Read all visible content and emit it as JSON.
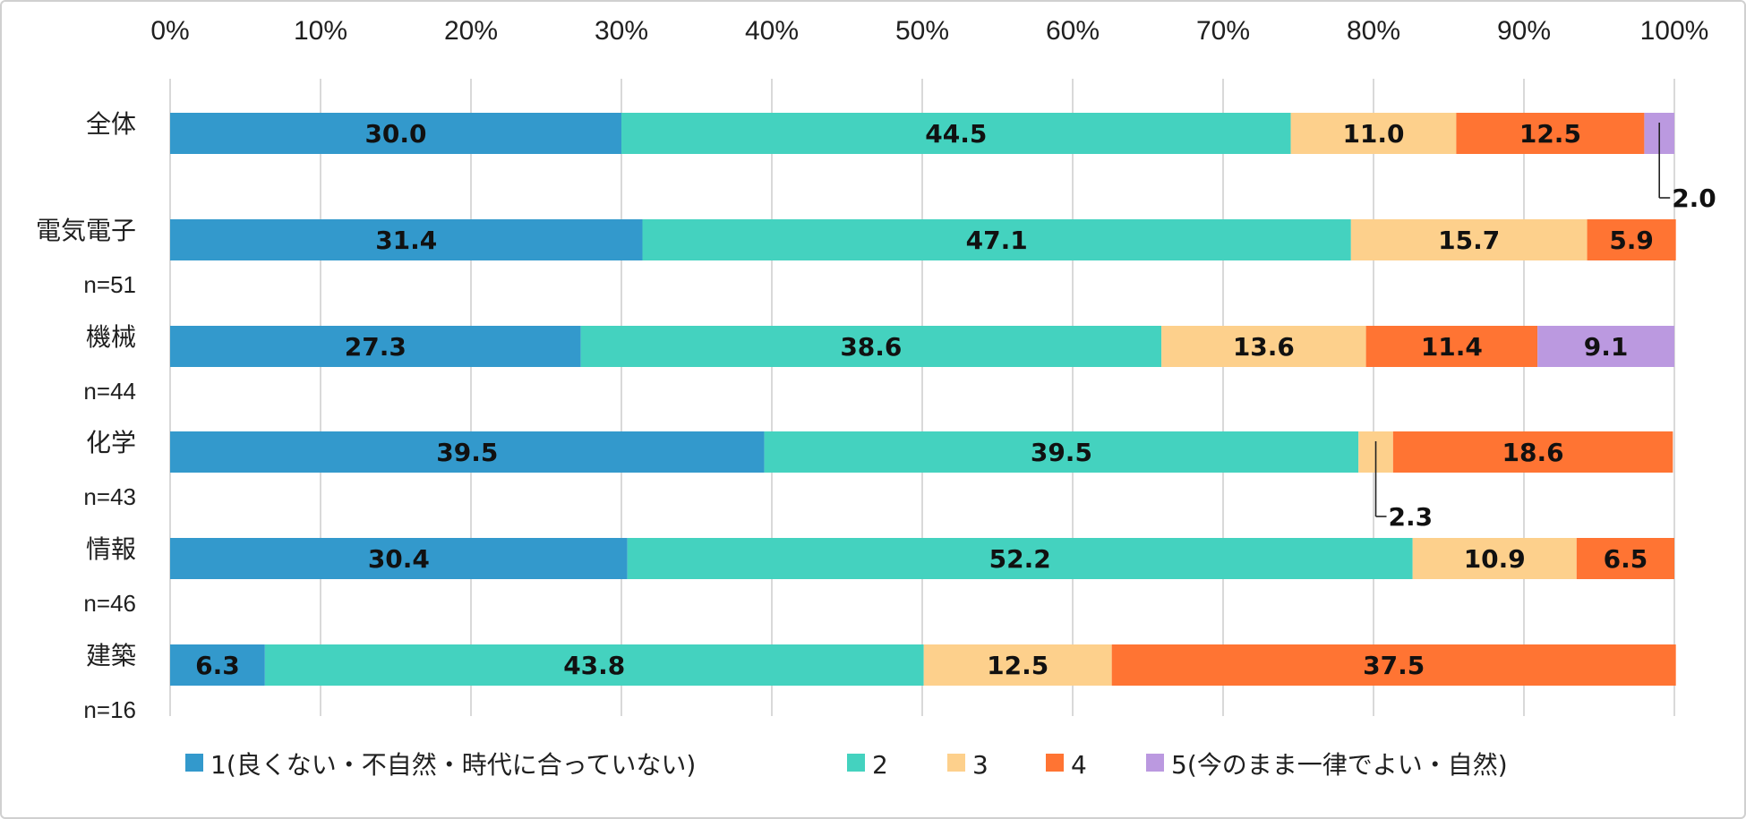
{
  "chart_data": {
    "type": "bar",
    "orientation": "horizontal",
    "stacked": true,
    "xlim": [
      0,
      100
    ],
    "x_ticks": [
      "0%",
      "10%",
      "20%",
      "30%",
      "40%",
      "50%",
      "60%",
      "70%",
      "80%",
      "90%",
      "100%"
    ],
    "grid": true,
    "legend_position": "bottom",
    "categories": [
      {
        "name": "全体",
        "n": ""
      },
      {
        "name": "電気電子",
        "n": "n=51"
      },
      {
        "name": "機械",
        "n": "n=44"
      },
      {
        "name": "化学",
        "n": "n=43"
      },
      {
        "name": "情報",
        "n": "n=46"
      },
      {
        "name": "建築",
        "n": "n=16"
      }
    ],
    "series": [
      {
        "name": "1(良くない・不自然・時代に合っていない)",
        "color": "#3399cc",
        "values": [
          30.0,
          31.4,
          27.3,
          39.5,
          30.4,
          6.3
        ],
        "labels": [
          "30.0",
          "31.4",
          "27.3",
          "39.5",
          "30.4",
          "6.3"
        ]
      },
      {
        "name": "2",
        "color": "#44d2bf",
        "values": [
          44.5,
          47.1,
          38.6,
          39.5,
          52.2,
          43.8
        ],
        "labels": [
          "44.5",
          "47.1",
          "38.6",
          "39.5",
          "52.2",
          "43.8"
        ]
      },
      {
        "name": "3",
        "color": "#fdd08c",
        "values": [
          11.0,
          15.7,
          13.6,
          2.3,
          10.9,
          12.5
        ],
        "labels": [
          "11.0",
          "15.7",
          "13.6",
          "2.3",
          "10.9",
          "12.5"
        ]
      },
      {
        "name": "4",
        "color": "#ff7433",
        "values": [
          12.5,
          5.9,
          11.4,
          18.6,
          6.5,
          37.5
        ],
        "labels": [
          "12.5",
          "5.9",
          "11.4",
          "18.6",
          "6.5",
          "37.5"
        ]
      },
      {
        "name": "5(今のまま一律でよい・自然)",
        "color": "#bb99e0",
        "values": [
          2.0,
          0,
          9.1,
          0,
          0,
          0
        ],
        "labels": [
          "2.0",
          "",
          "9.1",
          "",
          "",
          ""
        ]
      }
    ]
  }
}
